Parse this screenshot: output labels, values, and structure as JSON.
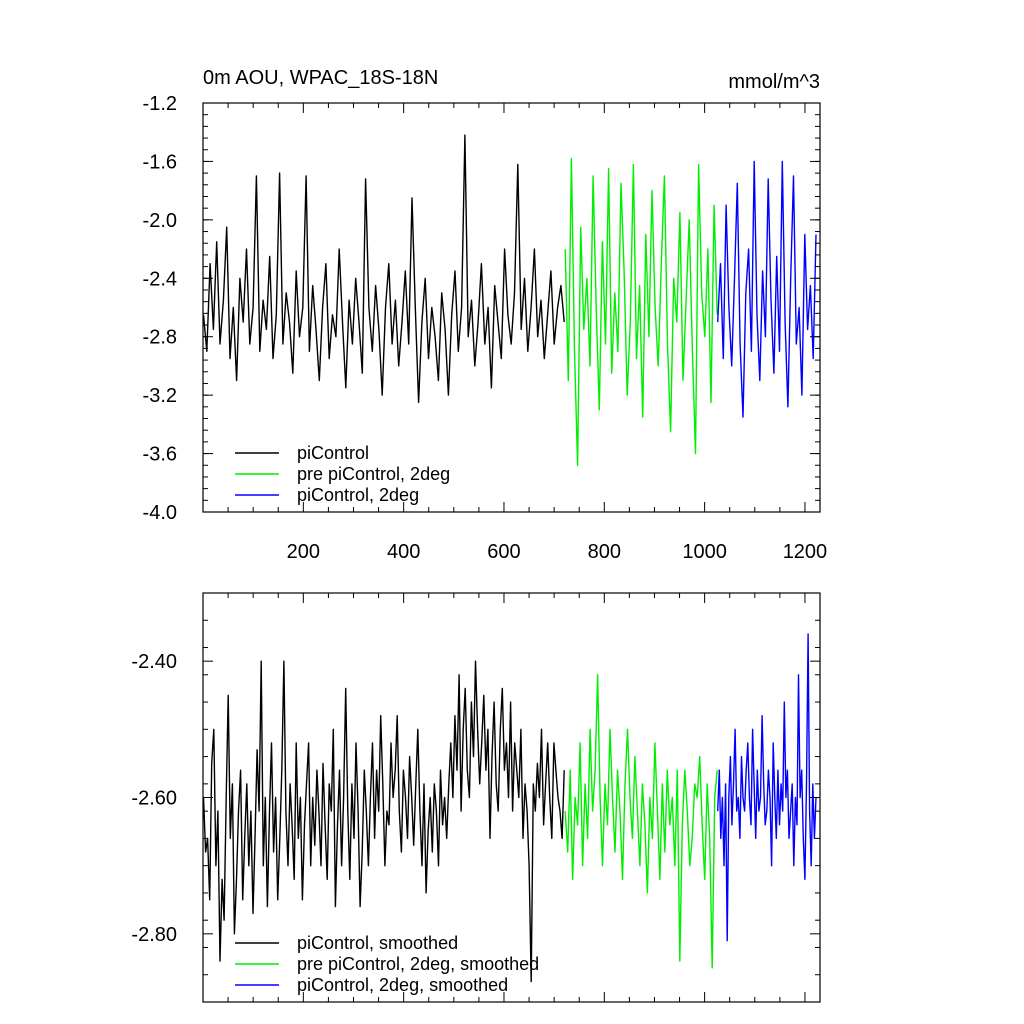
{
  "chart_data": [
    {
      "type": "line",
      "title": "0m AOU, WPAC_18S-18N",
      "title_right": "mmol/m^3",
      "xlim": [
        0,
        1230
      ],
      "ylim": [
        -4.0,
        -1.2
      ],
      "xticks": [
        200,
        400,
        600,
        800,
        1000,
        1200
      ],
      "xtick_labels": [
        "200",
        "400",
        "600",
        "800",
        "1000",
        "1200"
      ],
      "yticks": [
        -4.0,
        -3.6,
        -3.2,
        -2.8,
        -2.4,
        -2.0,
        -1.6,
        -1.2
      ],
      "ytick_labels": [
        "-4.0",
        "-3.6",
        "-3.2",
        "-2.8",
        "-2.4",
        "-2.0",
        "-1.6",
        "-1.2"
      ],
      "grid": false,
      "legend_position": "bottom-left",
      "series": [
        {
          "name": "piControl",
          "color": "#000000",
          "x_range": [
            1,
            720
          ],
          "values": [
            -2.65,
            -2.9,
            -2.3,
            -2.75,
            -2.15,
            -2.85,
            -2.55,
            -2.05,
            -2.95,
            -2.6,
            -3.1,
            -2.4,
            -2.7,
            -2.2,
            -2.85,
            -2.6,
            -1.7,
            -2.9,
            -2.55,
            -2.75,
            -2.25,
            -2.95,
            -2.65,
            -1.68,
            -2.85,
            -2.5,
            -2.7,
            -3.05,
            -2.35,
            -2.8,
            -2.6,
            -1.7,
            -2.9,
            -2.45,
            -2.75,
            -3.1,
            -2.6,
            -2.3,
            -2.95,
            -2.65,
            -2.8,
            -2.2,
            -2.7,
            -3.15,
            -2.55,
            -2.85,
            -2.4,
            -2.7,
            -3.05,
            -1.72,
            -2.6,
            -2.9,
            -2.45,
            -2.75,
            -3.2,
            -2.6,
            -2.3,
            -2.85,
            -2.55,
            -3.0,
            -2.7,
            -2.35,
            -2.85,
            -1.85,
            -2.6,
            -3.25,
            -2.7,
            -2.4,
            -2.95,
            -2.6,
            -2.8,
            -3.1,
            -2.5,
            -2.75,
            -3.2,
            -2.65,
            -2.35,
            -2.9,
            -2.6,
            -1.42,
            -2.8,
            -2.55,
            -3.0,
            -2.7,
            -2.3,
            -2.85,
            -2.6,
            -3.15,
            -2.45,
            -2.7,
            -2.95,
            -2.2,
            -2.65,
            -2.85,
            -2.5,
            -1.62,
            -2.75,
            -2.4,
            -2.9,
            -2.6,
            -2.2,
            -2.8,
            -2.55,
            -2.95,
            -2.65,
            -2.35,
            -2.85,
            -2.6,
            -2.45,
            -2.7
          ]
        },
        {
          "name": "pre piControl, 2deg",
          "color": "#00ee00",
          "x_range": [
            722,
            1025
          ],
          "values": [
            -2.2,
            -3.1,
            -1.58,
            -2.9,
            -3.68,
            -2.05,
            -2.75,
            -2.4,
            -3.0,
            -1.7,
            -2.6,
            -3.3,
            -2.15,
            -2.85,
            -1.65,
            -3.05,
            -2.5,
            -2.9,
            -1.75,
            -2.35,
            -3.2,
            -2.7,
            -1.62,
            -2.95,
            -2.45,
            -3.35,
            -2.1,
            -2.8,
            -1.8,
            -2.6,
            -3.0,
            -2.3,
            -1.7,
            -2.85,
            -3.45,
            -2.4,
            -2.7,
            -1.95,
            -3.1,
            -2.55,
            -2.0,
            -2.9,
            -3.6,
            -1.62,
            -2.5,
            -2.8,
            -2.2,
            -3.25,
            -1.9,
            -2.65
          ]
        },
        {
          "name": "piControl, 2deg",
          "color": "#0000ff",
          "x_range": [
            1026,
            1222
          ],
          "values": [
            -2.7,
            -2.3,
            -2.95,
            -1.9,
            -2.6,
            -3.0,
            -2.4,
            -1.75,
            -2.85,
            -3.35,
            -2.5,
            -2.2,
            -2.9,
            -1.6,
            -2.65,
            -3.1,
            -2.35,
            -2.8,
            -1.72,
            -2.55,
            -3.05,
            -2.25,
            -2.9,
            -1.6,
            -2.7,
            -3.28,
            -2.4,
            -1.7,
            -2.85,
            -2.6,
            -3.2,
            -2.1,
            -2.75,
            -2.45,
            -2.95,
            -2.1
          ]
        }
      ]
    },
    {
      "type": "line",
      "xlim": [
        0,
        1230
      ],
      "ylim": [
        -2.9,
        -2.3
      ],
      "xticks": [
        200,
        400,
        600,
        800,
        1000,
        1200
      ],
      "yticks": [
        -2.8,
        -2.6,
        -2.4
      ],
      "ytick_labels": [
        "-2.80",
        "-2.60",
        "-2.40"
      ],
      "grid": false,
      "legend_position": "bottom-left",
      "series": [
        {
          "name": "piControl, smoothed",
          "color": "#000000",
          "x_range": [
            1,
            720
          ],
          "values": [
            -2.6,
            -2.68,
            -2.66,
            -2.75,
            -2.55,
            -2.5,
            -2.7,
            -2.62,
            -2.84,
            -2.72,
            -2.78,
            -2.6,
            -2.45,
            -2.66,
            -2.58,
            -2.8,
            -2.72,
            -2.62,
            -2.56,
            -2.75,
            -2.66,
            -2.58,
            -2.7,
            -2.62,
            -2.77,
            -2.66,
            -2.53,
            -2.62,
            -2.4,
            -2.7,
            -2.6,
            -2.76,
            -2.62,
            -2.52,
            -2.68,
            -2.6,
            -2.75,
            -2.66,
            -2.56,
            -2.4,
            -2.62,
            -2.7,
            -2.58,
            -2.64,
            -2.72,
            -2.52,
            -2.66,
            -2.6,
            -2.75,
            -2.64,
            -2.58,
            -2.52,
            -2.7,
            -2.6,
            -2.67,
            -2.56,
            -2.62,
            -2.7,
            -2.55,
            -2.64,
            -2.72,
            -2.58,
            -2.62,
            -2.5,
            -2.76,
            -2.64,
            -2.56,
            -2.7,
            -2.6,
            -2.44,
            -2.62,
            -2.72,
            -2.58,
            -2.66,
            -2.52,
            -2.62,
            -2.76,
            -2.68,
            -2.56,
            -2.62,
            -2.7,
            -2.6,
            -2.52,
            -2.66,
            -2.56,
            -2.62,
            -2.48,
            -2.58,
            -2.7,
            -2.62,
            -2.64,
            -2.52,
            -2.6,
            -2.56,
            -2.48,
            -2.62,
            -2.68,
            -2.56,
            -2.6,
            -2.66,
            -2.54,
            -2.6,
            -2.67,
            -2.58,
            -2.5,
            -2.62,
            -2.7,
            -2.58,
            -2.74,
            -2.65,
            -2.6,
            -2.68,
            -2.58,
            -2.62,
            -2.7,
            -2.56,
            -2.64,
            -2.6,
            -2.66,
            -2.58,
            -2.52,
            -2.6,
            -2.48,
            -2.56,
            -2.42,
            -2.62,
            -2.5,
            -2.44,
            -2.56,
            -2.6,
            -2.46,
            -2.54,
            -2.4,
            -2.5,
            -2.58,
            -2.52,
            -2.45,
            -2.56,
            -2.5,
            -2.66,
            -2.54,
            -2.46,
            -2.58,
            -2.62,
            -2.5,
            -2.44,
            -2.56,
            -2.52,
            -2.6,
            -2.46,
            -2.62,
            -2.52,
            -2.56,
            -2.6,
            -2.5,
            -2.66,
            -2.58,
            -2.62,
            -2.7,
            -2.87,
            -2.58,
            -2.62,
            -2.55,
            -2.6,
            -2.5,
            -2.64,
            -2.58,
            -2.52,
            -2.6,
            -2.66,
            -2.52,
            -2.56,
            -2.6,
            -2.62,
            -2.66,
            -2.56
          ]
        },
        {
          "name": "pre piControl, 2deg, smoothed",
          "color": "#00ee00",
          "x_range": [
            722,
            1025
          ],
          "values": [
            -2.62,
            -2.68,
            -2.56,
            -2.72,
            -2.6,
            -2.64,
            -2.52,
            -2.7,
            -2.58,
            -2.66,
            -2.5,
            -2.62,
            -2.56,
            -2.42,
            -2.6,
            -2.7,
            -2.58,
            -2.64,
            -2.5,
            -2.6,
            -2.68,
            -2.56,
            -2.62,
            -2.72,
            -2.58,
            -2.5,
            -2.6,
            -2.66,
            -2.54,
            -2.62,
            -2.7,
            -2.58,
            -2.64,
            -2.74,
            -2.6,
            -2.66,
            -2.52,
            -2.62,
            -2.72,
            -2.58,
            -2.68,
            -2.56,
            -2.64,
            -2.6,
            -2.7,
            -2.56,
            -2.84,
            -2.64,
            -2.56,
            -2.62,
            -2.7,
            -2.66,
            -2.58,
            -2.6,
            -2.54,
            -2.64,
            -2.72,
            -2.58,
            -2.66,
            -2.85,
            -2.6,
            -2.56
          ]
        },
        {
          "name": "piControl, 2deg, smoothed",
          "color": "#0000ff",
          "x_range": [
            1026,
            1222
          ],
          "values": [
            -2.62,
            -2.56,
            -2.66,
            -2.6,
            -2.7,
            -2.58,
            -2.81,
            -2.6,
            -2.54,
            -2.64,
            -2.58,
            -2.5,
            -2.62,
            -2.6,
            -2.66,
            -2.54,
            -2.6,
            -2.62,
            -2.56,
            -2.52,
            -2.6,
            -2.64,
            -2.5,
            -2.58,
            -2.66,
            -2.56,
            -2.62,
            -2.6,
            -2.48,
            -2.58,
            -2.64,
            -2.62,
            -2.56,
            -2.6,
            -2.7,
            -2.52,
            -2.6,
            -2.66,
            -2.56,
            -2.64,
            -2.58,
            -2.62,
            -2.46,
            -2.6,
            -2.56,
            -2.66,
            -2.62,
            -2.58,
            -2.7,
            -2.6,
            -2.64,
            -2.42,
            -2.6,
            -2.56,
            -2.66,
            -2.72,
            -2.58,
            -2.36,
            -2.62,
            -2.7,
            -2.58,
            -2.66,
            -2.6
          ]
        }
      ]
    }
  ]
}
